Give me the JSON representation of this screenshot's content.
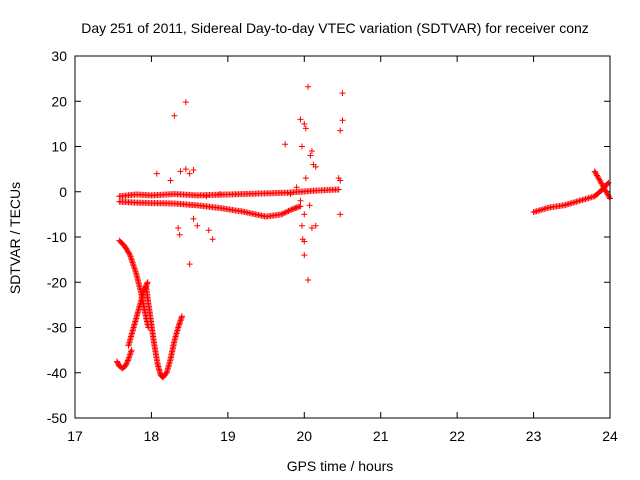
{
  "chart_data": {
    "type": "scatter",
    "title": "Day 251 of 2011, Sidereal Day-to-day VTEC variation (SDTVAR) for receiver conz",
    "xlabel": "GPS time / hours",
    "ylabel": "SDTVAR / TECUs",
    "xlim": [
      17,
      24
    ],
    "ylim": [
      -50,
      30
    ],
    "xticks": [
      17,
      18,
      19,
      20,
      21,
      22,
      23,
      24
    ],
    "yticks": [
      -50,
      -40,
      -30,
      -20,
      -10,
      0,
      10,
      20,
      30
    ],
    "marker": "+",
    "marker_color": "#ff0000",
    "grid": false,
    "series": [
      {
        "name": "SDTVAR",
        "segments": [
          {
            "desc": "upper band 17.6-20.5",
            "x": [
              17.58,
              17.8,
              18.0,
              18.3,
              18.6,
              19.0,
              19.4,
              19.8,
              20.1,
              20.45
            ],
            "y": [
              -1.0,
              -0.6,
              -0.8,
              -0.5,
              -0.8,
              -0.6,
              -0.4,
              -0.2,
              0.2,
              0.5
            ]
          },
          {
            "desc": "lower band 17.6-19.95",
            "x": [
              17.58,
              17.8,
              18.0,
              18.3,
              18.6,
              18.9,
              19.2,
              19.5,
              19.7,
              19.85,
              19.95
            ],
            "y": [
              -2.2,
              -2.4,
              -2.5,
              -2.6,
              -3.0,
              -3.6,
              -4.4,
              -5.5,
              -5.0,
              -3.8,
              -3.2
            ]
          },
          {
            "desc": "descent 17.58-17.95",
            "x": [
              17.58,
              17.65,
              17.72,
              17.8,
              17.86,
              17.92,
              17.96
            ],
            "y": [
              -10.8,
              -12.0,
              -14.0,
              -18.0,
              -22.0,
              -27.0,
              -30.0
            ]
          },
          {
            "desc": "dip 17.55-17.75",
            "x": [
              17.55,
              17.58,
              17.62,
              17.66,
              17.7,
              17.74
            ],
            "y": [
              -37.5,
              -38.5,
              -39.0,
              -38.5,
              -37.0,
              -35.0
            ]
          },
          {
            "desc": "rise 17.7-17.95",
            "x": [
              17.7,
              17.75,
              17.8,
              17.85,
              17.9,
              17.95
            ],
            "y": [
              -34.0,
              -31.0,
              -28.0,
              -25.0,
              -22.0,
              -20.0
            ]
          },
          {
            "desc": "fall 17.93-18.15",
            "x": [
              17.93,
              17.98,
              18.03,
              18.08,
              18.12,
              18.15
            ],
            "y": [
              -21.0,
              -27.0,
              -33.0,
              -38.0,
              -40.5,
              -41.0
            ]
          },
          {
            "desc": "rise 18.15-18.4",
            "x": [
              18.15,
              18.2,
              18.25,
              18.3,
              18.35,
              18.4
            ],
            "y": [
              -41.0,
              -40.0,
              -37.0,
              -33.0,
              -30.0,
              -27.5
            ]
          },
          {
            "desc": "arc 23.0-23.98",
            "x": [
              23.0,
              23.2,
              23.4,
              23.6,
              23.8,
              23.9,
              23.98
            ],
            "y": [
              -4.5,
              -3.5,
              -3.0,
              -2.0,
              -1.0,
              0.5,
              2.0
            ]
          },
          {
            "desc": "spike 23.8-24",
            "x": [
              23.8,
              23.85,
              23.9,
              23.95,
              24.0
            ],
            "y": [
              4.5,
              3.0,
              1.5,
              0.0,
              -1.5
            ]
          }
        ],
        "scatter_points": [
          {
            "x": 18.3,
            "y": 16.8
          },
          {
            "x": 18.45,
            "y": 19.8
          },
          {
            "x": 18.07,
            "y": 4.0
          },
          {
            "x": 18.45,
            "y": 5.0
          },
          {
            "x": 18.5,
            "y": 4.0
          },
          {
            "x": 18.55,
            "y": 4.8
          },
          {
            "x": 18.38,
            "y": 4.5
          },
          {
            "x": 18.25,
            "y": 2.5
          },
          {
            "x": 18.35,
            "y": -8.0
          },
          {
            "x": 18.37,
            "y": -9.5
          },
          {
            "x": 18.5,
            "y": -16.0
          },
          {
            "x": 18.55,
            "y": -6.0
          },
          {
            "x": 18.6,
            "y": -7.5
          },
          {
            "x": 18.75,
            "y": -8.5
          },
          {
            "x": 18.8,
            "y": -10.5
          },
          {
            "x": 18.72,
            "y": -1.0
          },
          {
            "x": 18.9,
            "y": -0.5
          },
          {
            "x": 19.75,
            "y": 10.5
          },
          {
            "x": 19.82,
            "y": -0.5
          },
          {
            "x": 19.9,
            "y": 1.0
          },
          {
            "x": 19.95,
            "y": 16.0
          },
          {
            "x": 20.0,
            "y": 15.0
          },
          {
            "x": 20.02,
            "y": 14.0
          },
          {
            "x": 19.97,
            "y": 10.0
          },
          {
            "x": 20.05,
            "y": 23.2
          },
          {
            "x": 20.1,
            "y": 9.0
          },
          {
            "x": 20.12,
            "y": 6.0
          },
          {
            "x": 20.08,
            "y": 8.0
          },
          {
            "x": 20.15,
            "y": 5.5
          },
          {
            "x": 20.02,
            "y": 3.0
          },
          {
            "x": 19.95,
            "y": -2.0
          },
          {
            "x": 20.0,
            "y": -5.0
          },
          {
            "x": 19.97,
            "y": -7.5
          },
          {
            "x": 19.98,
            "y": -10.5
          },
          {
            "x": 20.0,
            "y": -11.0
          },
          {
            "x": 20.0,
            "y": -14.0
          },
          {
            "x": 20.05,
            "y": -19.5
          },
          {
            "x": 20.1,
            "y": -8.0
          },
          {
            "x": 20.15,
            "y": -7.5
          },
          {
            "x": 20.07,
            "y": -3.0
          },
          {
            "x": 20.45,
            "y": 3.0
          },
          {
            "x": 20.47,
            "y": 2.5
          },
          {
            "x": 20.5,
            "y": 15.8
          },
          {
            "x": 20.47,
            "y": 13.5
          },
          {
            "x": 20.5,
            "y": 21.8
          },
          {
            "x": 20.47,
            "y": -5.0
          }
        ]
      }
    ]
  }
}
